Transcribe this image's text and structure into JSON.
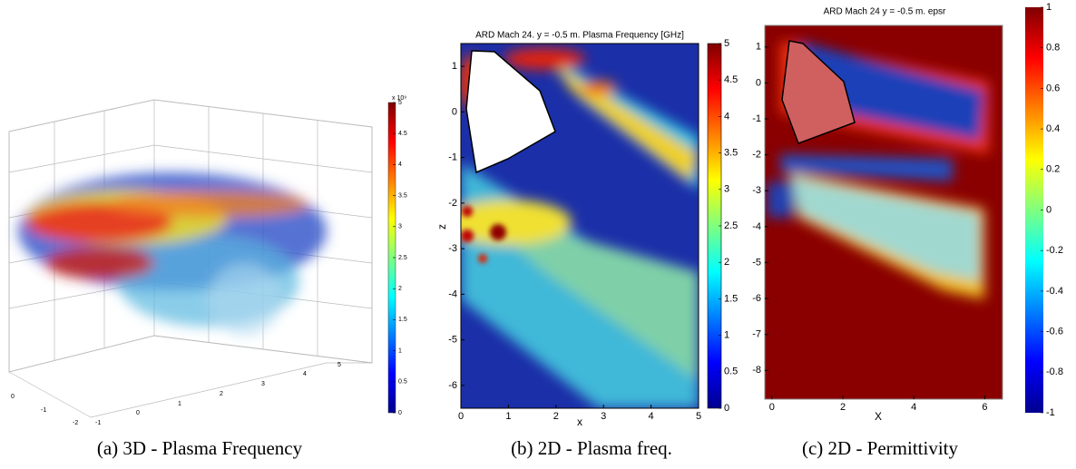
{
  "panels": [
    {
      "caption": "(a) 3D - Plasma Frequency",
      "colorbar": {
        "lim": [
          0,
          5
        ],
        "ticks": [
          0,
          0.5,
          1,
          1.5,
          2,
          2.5,
          3,
          3.5,
          4,
          4.5,
          5
        ],
        "exponent": "x 10⁹"
      },
      "axis_texts": [
        "0",
        "-1",
        "-2",
        "-1",
        "0",
        "1",
        "2",
        "3",
        "4",
        "5"
      ]
    },
    {
      "caption": "(b) 2D - Plasma freq.",
      "title": "ARD Mach 24. y = -0.5 m. Plasma Frequency [GHz]",
      "xlabel": "x",
      "ylabel": "z",
      "xlim": [
        0,
        5
      ],
      "ylim": [
        -6.5,
        1.5
      ],
      "xticks": [
        0,
        1,
        2,
        3,
        4,
        5
      ],
      "yticks": [
        -6,
        -5,
        -4,
        -3,
        -2,
        -1,
        0,
        1
      ],
      "colorbar": {
        "lim": [
          0,
          5
        ],
        "ticks": [
          0,
          0.5,
          1,
          1.5,
          2,
          2.5,
          3,
          3.5,
          4,
          4.5,
          5
        ]
      }
    },
    {
      "caption": "(c) 2D - Permittivity",
      "title": "ARD Mach  24 y = -0.5 m. epsr",
      "xlabel": "X",
      "xlim": [
        -0.2,
        6.5
      ],
      "ylim": [
        -8.8,
        1.6
      ],
      "xticks": [
        0,
        2,
        4,
        6
      ],
      "yticks": [
        -8,
        -7,
        -6,
        -5,
        -4,
        -3,
        -2,
        -1,
        0,
        1
      ],
      "colorbar": {
        "lim": [
          -1,
          1
        ],
        "ticks": [
          -1,
          -0.8,
          -0.6,
          -0.4,
          -0.2,
          0,
          0.2,
          0.4,
          0.6,
          0.8,
          1
        ]
      }
    }
  ]
}
